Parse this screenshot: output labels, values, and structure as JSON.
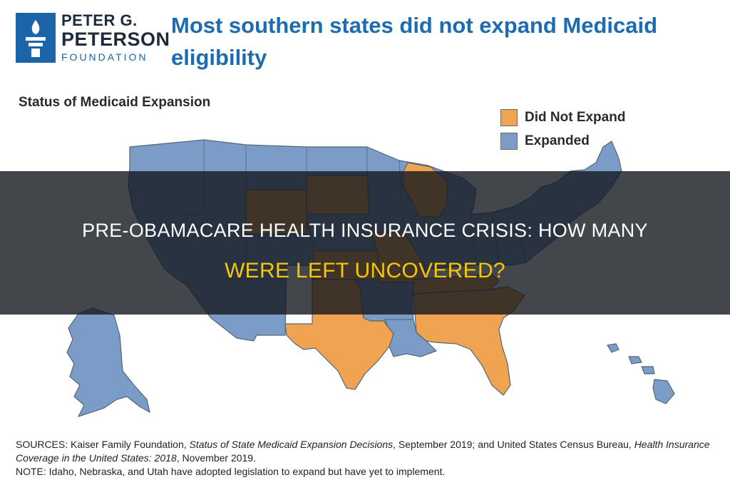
{
  "logo": {
    "line1": "PETER G.",
    "line2": "PETERSON",
    "line3": "FOUNDATION"
  },
  "headline": "Most southern states did not expand Medicaid eligibility",
  "map_title": "Status of Medicaid Expansion",
  "legend": [
    {
      "label": "Did Not Expand",
      "color": "#f0a351"
    },
    {
      "label": "Expanded",
      "color": "#7b9cc6"
    }
  ],
  "sources": {
    "label": "SOURCES:",
    "part1": " Kaiser Family Foundation, ",
    "title1": "Status of State Medicaid Expansion Decisions",
    "part2": ", September 2019; and United States Census Bureau, ",
    "title2": "Health Insurance Coverage in the United States: 2018",
    "part3": ", November 2019.",
    "note": "NOTE: Idaho, Nebraska, and Utah have adopted legislation to expand but have yet to implement."
  },
  "overlay": {
    "line1": "PRE-OBAMACARE HEALTH INSURANCE CRISIS: HOW MANY",
    "line2": "WERE LEFT UNCOVERED?"
  },
  "colors": {
    "not_expanded": "#f0a351",
    "expanded": "#7b9cc6",
    "border": "#55657a"
  }
}
